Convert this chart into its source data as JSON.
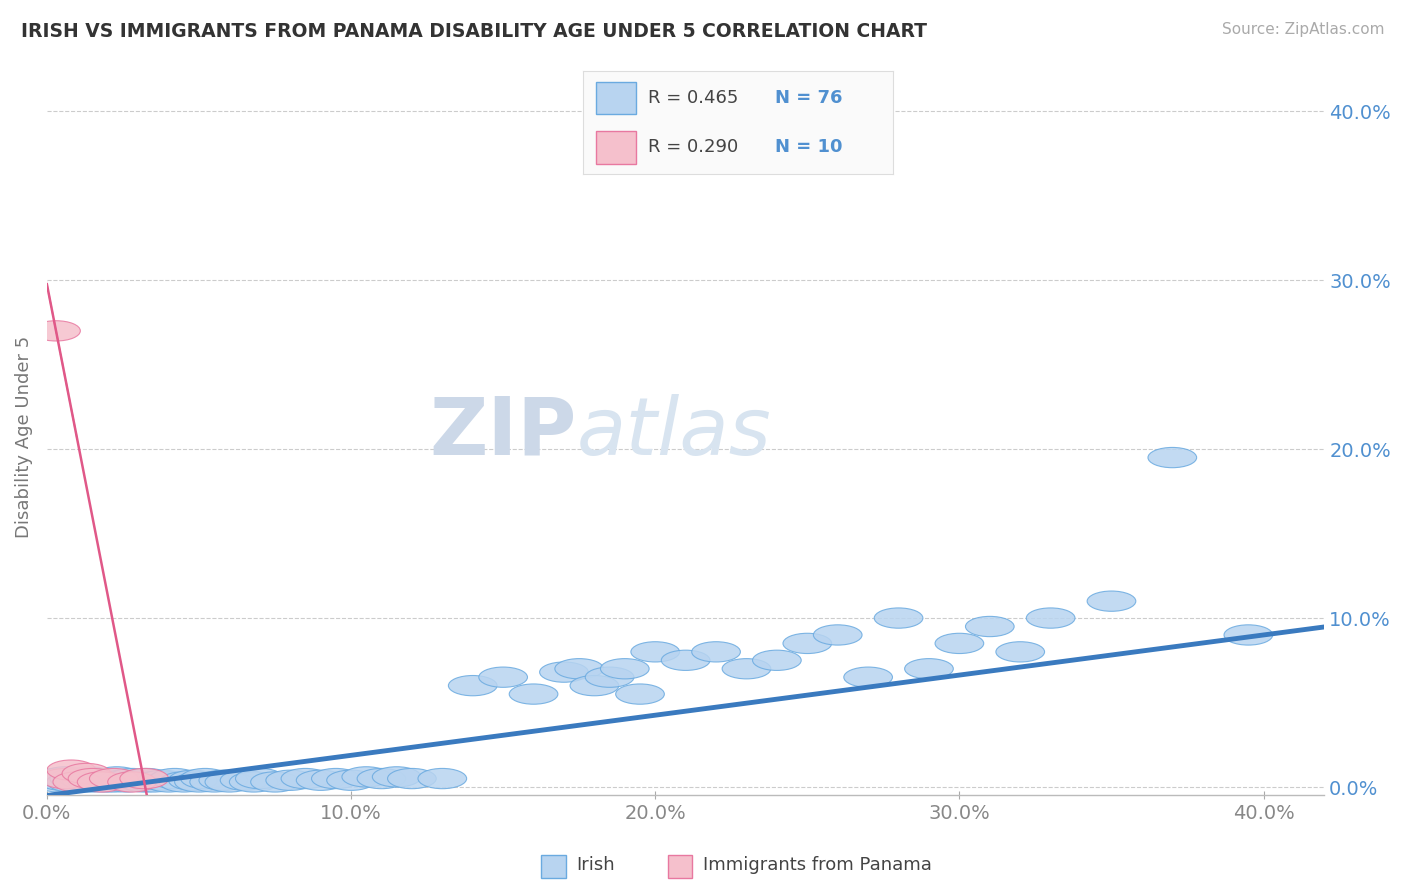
{
  "title": "IRISH VS IMMIGRANTS FROM PANAMA DISABILITY AGE UNDER 5 CORRELATION CHART",
  "source": "Source: ZipAtlas.com",
  "ylabel": "Disability Age Under 5",
  "xlim": [
    0.0,
    0.42
  ],
  "ylim": [
    -0.005,
    0.42
  ],
  "ytick_labels": [
    "0.0%",
    "10.0%",
    "20.0%",
    "30.0%",
    "40.0%"
  ],
  "ytick_vals": [
    0.0,
    0.1,
    0.2,
    0.3,
    0.4
  ],
  "xtick_labels": [
    "0.0%",
    "10.0%",
    "20.0%",
    "30.0%",
    "40.0%"
  ],
  "xtick_vals": [
    0.0,
    0.1,
    0.2,
    0.3,
    0.4
  ],
  "irish_R": 0.465,
  "irish_N": 76,
  "panama_R": 0.29,
  "panama_N": 10,
  "irish_color": "#b8d4f0",
  "irish_edge_color": "#6aaae0",
  "irish_line_color": "#3a7abf",
  "panama_color": "#f5c0cc",
  "panama_edge_color": "#e878a0",
  "panama_line_color": "#e05888",
  "irish_scatter_x": [
    0.002,
    0.004,
    0.005,
    0.006,
    0.008,
    0.009,
    0.01,
    0.011,
    0.012,
    0.013,
    0.014,
    0.015,
    0.016,
    0.018,
    0.019,
    0.02,
    0.021,
    0.022,
    0.023,
    0.025,
    0.026,
    0.028,
    0.03,
    0.032,
    0.033,
    0.035,
    0.038,
    0.04,
    0.042,
    0.045,
    0.048,
    0.05,
    0.052,
    0.055,
    0.058,
    0.06,
    0.065,
    0.068,
    0.07,
    0.075,
    0.08,
    0.085,
    0.09,
    0.095,
    0.1,
    0.105,
    0.11,
    0.115,
    0.12,
    0.13,
    0.14,
    0.15,
    0.16,
    0.17,
    0.175,
    0.18,
    0.185,
    0.19,
    0.195,
    0.2,
    0.21,
    0.22,
    0.23,
    0.24,
    0.25,
    0.26,
    0.27,
    0.28,
    0.29,
    0.3,
    0.31,
    0.32,
    0.33,
    0.35,
    0.37,
    0.395
  ],
  "irish_scatter_y": [
    0.005,
    0.003,
    0.004,
    0.006,
    0.003,
    0.005,
    0.004,
    0.003,
    0.005,
    0.004,
    0.006,
    0.003,
    0.005,
    0.004,
    0.003,
    0.005,
    0.004,
    0.003,
    0.006,
    0.004,
    0.003,
    0.005,
    0.004,
    0.003,
    0.005,
    0.003,
    0.004,
    0.003,
    0.005,
    0.003,
    0.004,
    0.003,
    0.005,
    0.003,
    0.004,
    0.003,
    0.004,
    0.003,
    0.005,
    0.003,
    0.004,
    0.005,
    0.004,
    0.005,
    0.004,
    0.006,
    0.005,
    0.006,
    0.005,
    0.005,
    0.06,
    0.065,
    0.055,
    0.068,
    0.07,
    0.06,
    0.065,
    0.07,
    0.055,
    0.08,
    0.075,
    0.08,
    0.07,
    0.075,
    0.085,
    0.09,
    0.065,
    0.1,
    0.07,
    0.085,
    0.095,
    0.08,
    0.1,
    0.11,
    0.195,
    0.09
  ],
  "panama_scatter_x": [
    0.003,
    0.006,
    0.008,
    0.01,
    0.013,
    0.015,
    0.018,
    0.022,
    0.028,
    0.032
  ],
  "panama_scatter_y": [
    0.27,
    0.005,
    0.01,
    0.003,
    0.008,
    0.005,
    0.003,
    0.005,
    0.003,
    0.005
  ],
  "watermark_zip": "ZIP",
  "watermark_atlas": "atlas",
  "background_color": "#ffffff",
  "grid_color": "#cccccc"
}
